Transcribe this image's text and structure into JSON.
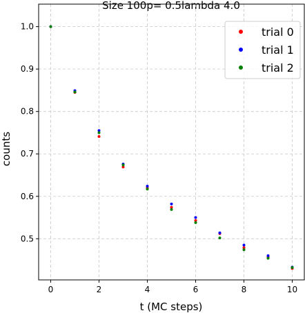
{
  "chart_data": {
    "type": "scatter",
    "title": "Size 100p= 0.5lambda 4.0",
    "xlabel": "t (MC steps)",
    "ylabel": "counts",
    "xlim": [
      -0.5,
      10.5
    ],
    "ylim": [
      0.403,
      1.053
    ],
    "x_ticks": [
      0,
      2,
      4,
      6,
      8,
      10
    ],
    "x_tick_labels": [
      "0",
      "2",
      "4",
      "6",
      "8",
      "10"
    ],
    "y_ticks": [
      0.5,
      0.6,
      0.7,
      0.8,
      0.9,
      1.0
    ],
    "y_tick_labels": [
      "0.5",
      "0.6",
      "0.7",
      "0.8",
      "0.9",
      "1.0"
    ],
    "grid": true,
    "legend_position": "top-right",
    "x": [
      0,
      1,
      2,
      3,
      4,
      5,
      6,
      7,
      8,
      9,
      10
    ],
    "series": [
      {
        "name": "trial 0",
        "color": "#ff0000",
        "values": [
          1.0,
          0.845,
          0.741,
          0.669,
          0.62,
          0.574,
          0.543,
          0.512,
          0.479,
          0.457,
          0.43
        ]
      },
      {
        "name": "trial 1",
        "color": "#0000ff",
        "values": [
          1.0,
          0.849,
          0.755,
          0.676,
          0.624,
          0.582,
          0.55,
          0.514,
          0.485,
          0.46,
          0.433
        ]
      },
      {
        "name": "trial 2",
        "color": "#008000",
        "values": [
          1.0,
          0.846,
          0.75,
          0.674,
          0.617,
          0.569,
          0.538,
          0.502,
          0.474,
          0.454,
          0.432
        ]
      }
    ]
  }
}
